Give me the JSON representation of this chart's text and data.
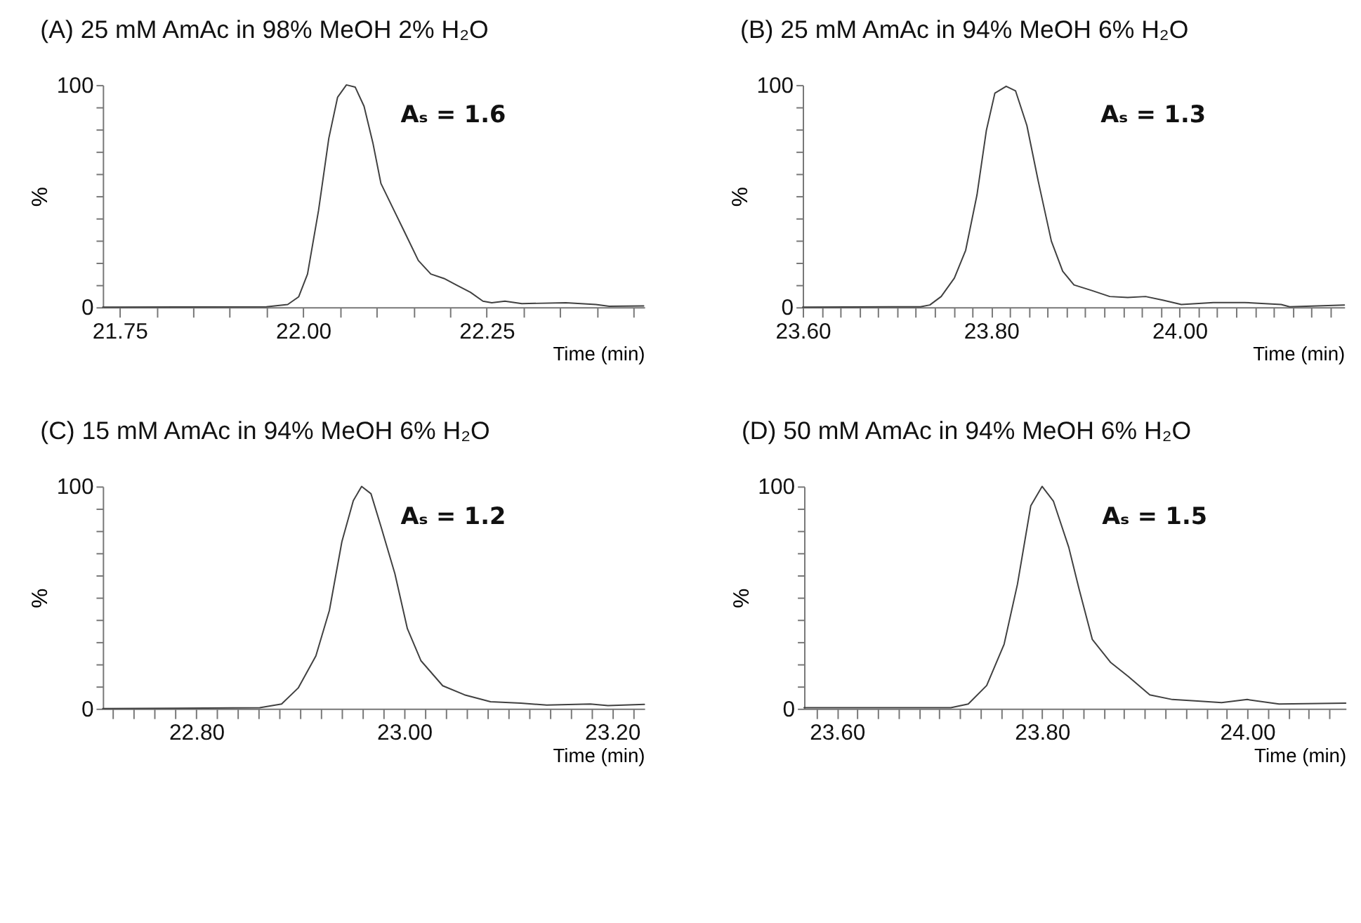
{
  "chart_data": [
    {
      "type": "line",
      "title": "(A) 25 mM AmAc in 98% MeOH 2% H₂O",
      "xlabel": "Time (min)",
      "ylabel": "%",
      "color": "#404040",
      "annotations": [
        "Aₛ = 1.6"
      ],
      "x": [
        21.727,
        21.95,
        21.979,
        21.994,
        22.006,
        22.021,
        22.035,
        22.047,
        22.059,
        22.071,
        22.083,
        22.095,
        22.106,
        22.121,
        22.139,
        22.157,
        22.174,
        22.192,
        22.21,
        22.228,
        22.245,
        22.257,
        22.275,
        22.298,
        22.358,
        22.399,
        22.417,
        22.464
      ],
      "values": [
        0,
        0.2,
        1.2,
        4.7,
        14.9,
        43.5,
        76,
        94.5,
        100,
        99,
        90.4,
        74,
        55.7,
        45.5,
        33.3,
        21,
        14.9,
        12.9,
        9.8,
        6.7,
        2.7,
        2,
        2.7,
        1.6,
        2,
        1.2,
        0.4,
        0.6
      ],
      "xlim": [
        21.727,
        22.465
      ],
      "ylim": [
        0,
        100
      ],
      "xticks": [
        {
          "value": 21.75,
          "label": "21.75"
        },
        {
          "value": 21.8,
          "label": null
        },
        {
          "value": 21.85,
          "label": null
        },
        {
          "value": 21.9,
          "label": null
        },
        {
          "value": 21.95,
          "label": null
        },
        {
          "value": 22.0,
          "label": "22.00"
        },
        {
          "value": 22.05,
          "label": null
        },
        {
          "value": 22.1,
          "label": null
        },
        {
          "value": 22.15,
          "label": null
        },
        {
          "value": 22.2,
          "label": null
        },
        {
          "value": 22.25,
          "label": "22.25"
        },
        {
          "value": 22.3,
          "label": null
        },
        {
          "value": 22.35,
          "label": null
        },
        {
          "value": 22.4,
          "label": null
        },
        {
          "value": 22.45,
          "label": null
        }
      ],
      "yticks": [
        0,
        {
          "value": 10,
          "label": null
        },
        {
          "value": 20,
          "label": null
        },
        {
          "value": 30,
          "label": null
        },
        {
          "value": 40,
          "label": null
        },
        {
          "value": 50,
          "label": null
        },
        {
          "value": 60,
          "label": null
        },
        {
          "value": 70,
          "label": null
        },
        {
          "value": 80,
          "label": null
        },
        {
          "value": 90,
          "label": null
        },
        100
      ]
    },
    {
      "type": "line",
      "title": "(B) 25 mM AmAc in 94% MeOH 6% H₂O",
      "xlabel": "Time (min)",
      "ylabel": "%",
      "color": "#404040",
      "annotations": [
        "Aₛ = 1.3"
      ],
      "x": [
        23.6,
        23.725,
        23.735,
        23.747,
        23.761,
        23.773,
        23.785,
        23.795,
        23.804,
        23.816,
        23.826,
        23.838,
        23.85,
        23.864,
        23.876,
        23.888,
        23.907,
        23.926,
        23.945,
        23.964,
        23.983,
        24.002,
        24.036,
        24.069,
        24.108,
        24.117,
        24.175
      ],
      "values": [
        0,
        0.2,
        1,
        4.8,
        13.1,
        25.6,
        50.5,
        79.6,
        96.3,
        99.4,
        97.3,
        81.7,
        56.8,
        29.7,
        16.2,
        10,
        7.5,
        4.8,
        4.4,
        4.8,
        3.1,
        1.2,
        2.1,
        2.1,
        1.2,
        0.2,
        1
      ],
      "xlim": [
        23.6,
        24.175
      ],
      "ylim": [
        0,
        100
      ],
      "xticks": [
        {
          "value": 23.6,
          "label": "23.60"
        },
        {
          "value": 23.62,
          "label": null
        },
        {
          "value": 23.64,
          "label": null
        },
        {
          "value": 23.66,
          "label": null
        },
        {
          "value": 23.68,
          "label": null
        },
        {
          "value": 23.7,
          "label": null
        },
        {
          "value": 23.72,
          "label": null
        },
        {
          "value": 23.74,
          "label": null
        },
        {
          "value": 23.76,
          "label": null
        },
        {
          "value": 23.78,
          "label": null
        },
        {
          "value": 23.8,
          "label": "23.80"
        },
        {
          "value": 23.82,
          "label": null
        },
        {
          "value": 23.84,
          "label": null
        },
        {
          "value": 23.86,
          "label": null
        },
        {
          "value": 23.88,
          "label": null
        },
        {
          "value": 23.9,
          "label": null
        },
        {
          "value": 23.92,
          "label": null
        },
        {
          "value": 23.94,
          "label": null
        },
        {
          "value": 23.96,
          "label": null
        },
        {
          "value": 23.98,
          "label": null
        },
        {
          "value": 24.0,
          "label": "24.00"
        },
        {
          "value": 24.02,
          "label": null
        },
        {
          "value": 24.04,
          "label": null
        },
        {
          "value": 24.06,
          "label": null
        },
        {
          "value": 24.08,
          "label": null
        },
        {
          "value": 24.1,
          "label": null
        },
        {
          "value": 24.12,
          "label": null
        },
        {
          "value": 24.14,
          "label": null
        },
        {
          "value": 24.16,
          "label": null
        }
      ],
      "yticks": [
        0,
        {
          "value": 10,
          "label": null
        },
        {
          "value": 20,
          "label": null
        },
        {
          "value": 30,
          "label": null
        },
        {
          "value": 40,
          "label": null
        },
        {
          "value": 50,
          "label": null
        },
        {
          "value": 60,
          "label": null
        },
        {
          "value": 70,
          "label": null
        },
        {
          "value": 80,
          "label": null
        },
        {
          "value": 90,
          "label": null
        },
        100
      ]
    },
    {
      "type": "line",
      "title": "(C) 15 mM AmAc in 94% MeOH 6% H₂O",
      "xlabel": "Time (min)",
      "ylabel": "%",
      "color": "#404040",
      "annotations": [
        "Aₛ = 1.2"
      ],
      "x": [
        22.71,
        22.861,
        22.882,
        22.898,
        22.915,
        22.928,
        22.94,
        22.951,
        22.959,
        22.968,
        22.978,
        22.991,
        23.003,
        23.016,
        23.037,
        23.058,
        23.083,
        23.112,
        23.137,
        23.179,
        23.196,
        23.231
      ],
      "values": [
        0,
        0.4,
        2.1,
        9.3,
        23.7,
        44.2,
        75.1,
        93.6,
        100,
        96.7,
        81.3,
        60.7,
        36,
        21.6,
        10.3,
        6.2,
        3.1,
        2.5,
        1.6,
        2.1,
        1.4,
        1.9
      ],
      "xlim": [
        22.71,
        23.231
      ],
      "ylim": [
        0,
        100
      ],
      "xticks": [
        {
          "value": 22.72,
          "label": null
        },
        {
          "value": 22.74,
          "label": null
        },
        {
          "value": 22.76,
          "label": null
        },
        {
          "value": 22.78,
          "label": null
        },
        {
          "value": 22.8,
          "label": "22.80"
        },
        {
          "value": 22.82,
          "label": null
        },
        {
          "value": 22.84,
          "label": null
        },
        {
          "value": 22.86,
          "label": null
        },
        {
          "value": 22.88,
          "label": null
        },
        {
          "value": 22.9,
          "label": null
        },
        {
          "value": 22.92,
          "label": null
        },
        {
          "value": 22.94,
          "label": null
        },
        {
          "value": 22.96,
          "label": null
        },
        {
          "value": 22.98,
          "label": null
        },
        {
          "value": 23.0,
          "label": "23.00"
        },
        {
          "value": 23.02,
          "label": null
        },
        {
          "value": 23.04,
          "label": null
        },
        {
          "value": 23.06,
          "label": null
        },
        {
          "value": 23.08,
          "label": null
        },
        {
          "value": 23.1,
          "label": null
        },
        {
          "value": 23.12,
          "label": null
        },
        {
          "value": 23.14,
          "label": null
        },
        {
          "value": 23.16,
          "label": null
        },
        {
          "value": 23.18,
          "label": null
        },
        {
          "value": 23.2,
          "label": "23.20"
        },
        {
          "value": 23.22,
          "label": null
        }
      ],
      "yticks": [
        0,
        {
          "value": 10,
          "label": null
        },
        {
          "value": 20,
          "label": null
        },
        {
          "value": 30,
          "label": null
        },
        {
          "value": 40,
          "label": null
        },
        {
          "value": 50,
          "label": null
        },
        {
          "value": 60,
          "label": null
        },
        {
          "value": 70,
          "label": null
        },
        {
          "value": 80,
          "label": null
        },
        {
          "value": 90,
          "label": null
        },
        100
      ]
    },
    {
      "type": "line",
      "title": "(D) 50 mM AmAc in 94% MeOH 6% H₂O",
      "xlabel": "Time (min)",
      "ylabel": "%",
      "color": "#404040",
      "annotations": [
        "Aₛ = 1.5"
      ],
      "x": [
        23.568,
        23.711,
        23.728,
        23.746,
        23.763,
        23.776,
        23.789,
        23.8,
        23.811,
        23.826,
        23.836,
        23.849,
        23.867,
        23.884,
        23.905,
        23.927,
        23.949,
        23.975,
        24.0,
        24.031,
        24.096
      ],
      "values": [
        0.4,
        0.4,
        2.1,
        10.4,
        29,
        56,
        91.3,
        100,
        93.4,
        72.6,
        53.9,
        31.1,
        20.7,
        14.5,
        6.2,
        4.1,
        3.5,
        2.7,
        4.1,
        2.1,
        2.5
      ],
      "xlim": [
        23.568,
        24.096
      ],
      "ylim": [
        0,
        100
      ],
      "xticks": [
        {
          "value": 23.58,
          "label": null
        },
        {
          "value": 23.6,
          "label": "23.60"
        },
        {
          "value": 23.62,
          "label": null
        },
        {
          "value": 23.64,
          "label": null
        },
        {
          "value": 23.66,
          "label": null
        },
        {
          "value": 23.68,
          "label": null
        },
        {
          "value": 23.7,
          "label": null
        },
        {
          "value": 23.72,
          "label": null
        },
        {
          "value": 23.74,
          "label": null
        },
        {
          "value": 23.76,
          "label": null
        },
        {
          "value": 23.78,
          "label": null
        },
        {
          "value": 23.8,
          "label": "23.80"
        },
        {
          "value": 23.82,
          "label": null
        },
        {
          "value": 23.84,
          "label": null
        },
        {
          "value": 23.86,
          "label": null
        },
        {
          "value": 23.88,
          "label": null
        },
        {
          "value": 23.9,
          "label": null
        },
        {
          "value": 23.92,
          "label": null
        },
        {
          "value": 23.94,
          "label": null
        },
        {
          "value": 23.96,
          "label": null
        },
        {
          "value": 23.98,
          "label": null
        },
        {
          "value": 24.0,
          "label": "24.00"
        },
        {
          "value": 24.02,
          "label": null
        },
        {
          "value": 24.04,
          "label": null
        },
        {
          "value": 24.06,
          "label": null
        },
        {
          "value": 24.08,
          "label": null
        }
      ],
      "yticks": [
        0,
        {
          "value": 10,
          "label": null
        },
        {
          "value": 20,
          "label": null
        },
        {
          "value": 30,
          "label": null
        },
        {
          "value": 40,
          "label": null
        },
        {
          "value": 50,
          "label": null
        },
        {
          "value": 60,
          "label": null
        },
        {
          "value": 70,
          "label": null
        },
        {
          "value": 80,
          "label": null
        },
        {
          "value": 90,
          "label": null
        },
        100
      ]
    }
  ]
}
